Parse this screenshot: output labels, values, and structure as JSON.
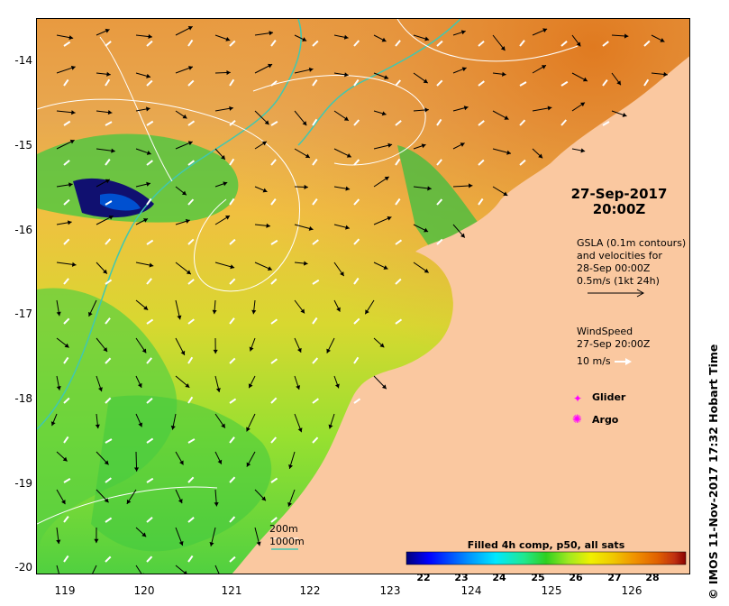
{
  "map": {
    "lat_ticks": [
      "-14",
      "-15",
      "-16",
      "-17",
      "-18",
      "-19",
      "-20"
    ],
    "lon_ticks": [
      "119",
      "120",
      "121",
      "122",
      "123",
      "124",
      "125",
      "126"
    ],
    "lat_range": [
      -20.1,
      -13.5
    ],
    "lon_range": [
      118.6,
      126.7
    ]
  },
  "timestamp": {
    "date": "27-Sep-2017",
    "time": "20:00Z"
  },
  "gsla_legend": {
    "line1": "GSLA (0.1m contours)",
    "line2": "and velocities for",
    "line3": "28-Sep 00:00Z",
    "line4": "0.5m/s (1kt 24h)"
  },
  "wind_legend": {
    "line1": "WindSpeed",
    "line2": "27-Sep 20:00Z",
    "line3": "10 m/s"
  },
  "markers": {
    "glider": "Glider",
    "argo": "Argo"
  },
  "bathymetry_legend": {
    "depth_200": "200m",
    "depth_1000": "1000m"
  },
  "colorbar": {
    "title": "Filled 4h comp, p50, all sats",
    "ticks": [
      "22",
      "23",
      "24",
      "25",
      "26",
      "27",
      "28"
    ],
    "range": [
      21.5,
      28.7
    ],
    "colors": [
      "#00007a",
      "#0000ff",
      "#0090ff",
      "#00e8ff",
      "#20e890",
      "#30d020",
      "#a0e820",
      "#f0f000",
      "#f0c800",
      "#f09000",
      "#e06000",
      "#c03010",
      "#8a0000"
    ]
  },
  "credit": "© IMOS 11-Nov-2017 17:32 Hobart Time",
  "colors": {
    "land": "#fac8a0",
    "warm_sea": "#e8a050",
    "mid_sea": "#f0c040",
    "cool_sea": "#a8e030",
    "cold_sea": "#40c040",
    "very_cold": "#101070",
    "contour_200": "#40c8b0",
    "contour_gsla": "#ffffff",
    "glider": "#ff00ff",
    "argo": "#ff00ff"
  }
}
